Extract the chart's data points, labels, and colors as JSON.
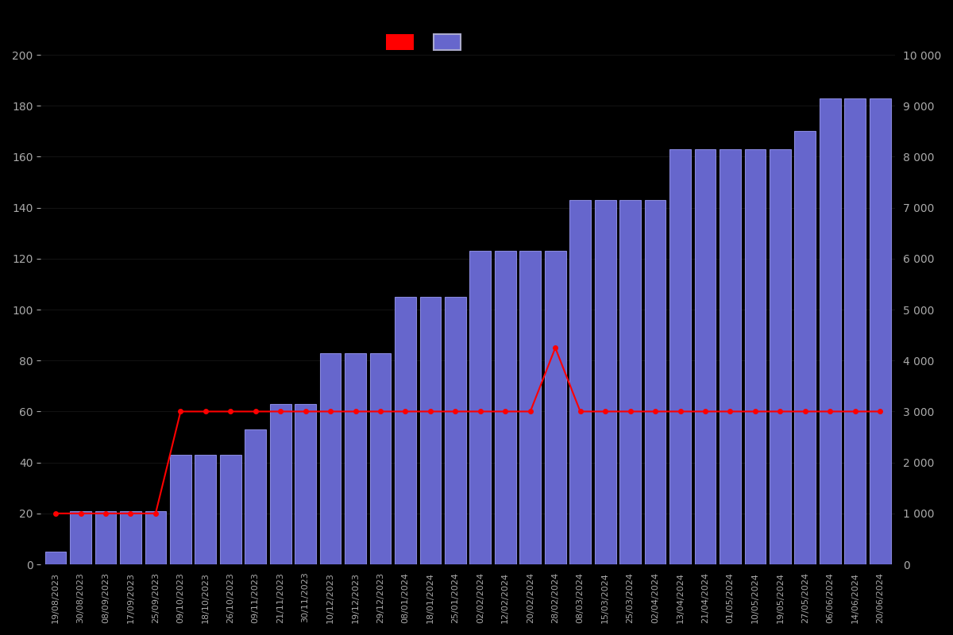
{
  "dates": [
    "19/08/2023",
    "30/08/2023",
    "08/09/2023",
    "17/09/2023",
    "25/09/2023",
    "09/10/2023",
    "18/10/2023",
    "26/10/2023",
    "09/11/2023",
    "21/11/2023",
    "30/11/2023",
    "10/12/2023",
    "19/12/2023",
    "29/12/2023",
    "08/01/2024",
    "18/01/2024",
    "25/01/2024",
    "02/02/2024",
    "12/02/2024",
    "20/02/2024",
    "28/02/2024",
    "08/03/2024",
    "15/03/2024",
    "25/03/2024",
    "02/04/2024",
    "13/04/2024",
    "21/04/2024",
    "01/05/2024",
    "10/05/2024",
    "19/05/2024",
    "27/05/2024",
    "06/06/2024",
    "14/06/2024",
    "20/06/2024"
  ],
  "bar_values": [
    5,
    21,
    21,
    21,
    21,
    43,
    43,
    43,
    53,
    63,
    63,
    83,
    83,
    83,
    105,
    105,
    105,
    123,
    123,
    123,
    123,
    143,
    143,
    143,
    143,
    163,
    163,
    163,
    163,
    163,
    170,
    183,
    183,
    183
  ],
  "line_values_right": [
    1000,
    1000,
    1000,
    1000,
    1000,
    3000,
    3000,
    3000,
    3000,
    3000,
    3000,
    3000,
    3000,
    3000,
    3000,
    3000,
    3000,
    3000,
    3000,
    3000,
    4250,
    3000,
    3000,
    3000,
    3000,
    3000,
    3000,
    3000,
    3000,
    3000,
    3000,
    3000,
    3000,
    3000
  ],
  "bar_color": "#6666cc",
  "bar_edge_color": "#8888dd",
  "line_color": "#ff0000",
  "background_color": "#000000",
  "text_color": "#aaaaaa",
  "left_ylim": [
    0,
    200
  ],
  "right_ylim": [
    0,
    10000
  ],
  "left_yticks": [
    0,
    20,
    40,
    60,
    80,
    100,
    120,
    140,
    160,
    180,
    200
  ],
  "right_yticks": [
    0,
    1000,
    2000,
    3000,
    4000,
    5000,
    6000,
    7000,
    8000,
    9000,
    10000
  ],
  "right_yticklabels": [
    "0",
    "1 000",
    "2 000",
    "3 000",
    "4 000",
    "5 000",
    "6 000",
    "7 000",
    "8 000",
    "9 000",
    "10 000"
  ]
}
